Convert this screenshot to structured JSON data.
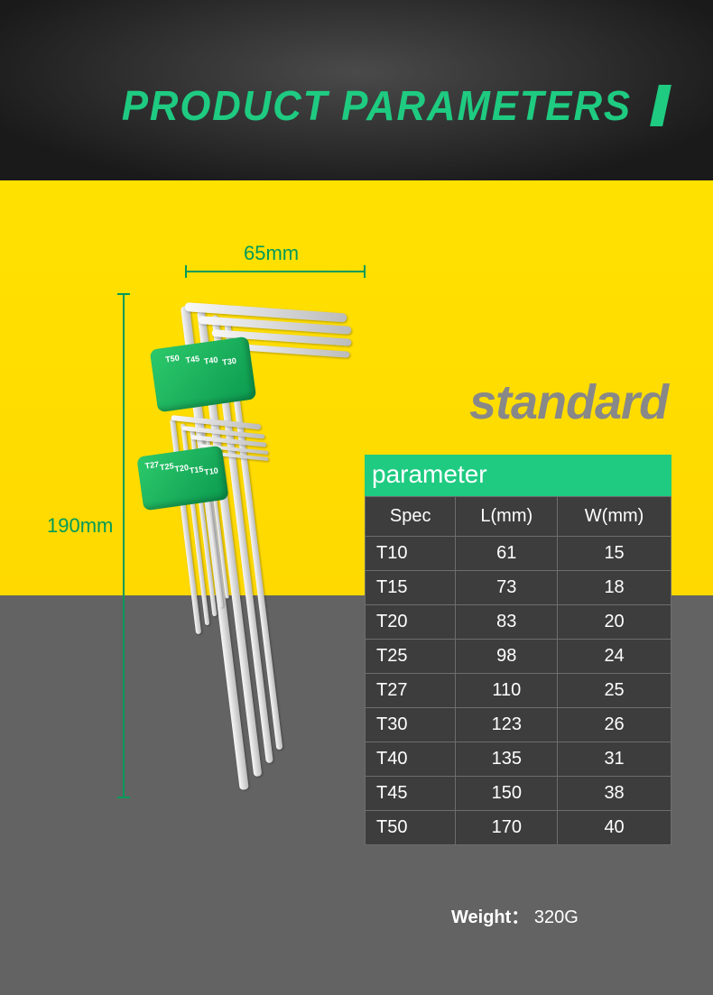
{
  "title": "PRODUCT  PARAMETERS",
  "variant_label": "standard",
  "dimensions": {
    "width_label": "65mm",
    "height_label": "190mm"
  },
  "holder_labels_top": [
    "T50",
    "T45",
    "T40",
    "T30"
  ],
  "holder_labels_bot": [
    "T27",
    "T25",
    "T20",
    "T15",
    "T10"
  ],
  "param_header": "parameter",
  "table": {
    "type": "table",
    "columns": [
      "Spec",
      "L(mm)",
      "W(mm)"
    ],
    "rows": [
      [
        "T10",
        "61",
        "15"
      ],
      [
        "T15",
        "73",
        "18"
      ],
      [
        "T20",
        "83",
        "20"
      ],
      [
        "T25",
        "98",
        "24"
      ],
      [
        "T27",
        "110",
        "25"
      ],
      [
        "T30",
        "123",
        "26"
      ],
      [
        "T40",
        "135",
        "31"
      ],
      [
        "T45",
        "150",
        "38"
      ],
      [
        "T50",
        "170",
        "40"
      ]
    ],
    "col_align": [
      "left",
      "center",
      "center"
    ],
    "header_bg": "#3d3d3d",
    "cell_bg": "#3d3d3d",
    "border_color": "#6d6d6d",
    "text_color": "#ffffff",
    "font_size": 20
  },
  "weight_label": "Weight：",
  "weight_value": "320G",
  "colors": {
    "accent_green": "#1ecb81",
    "dim_green": "#009a5a",
    "yellow": "#ffe100",
    "grey_bg": "#636363",
    "dark_header": "#1a1a1a",
    "standard_text": "#888888"
  }
}
